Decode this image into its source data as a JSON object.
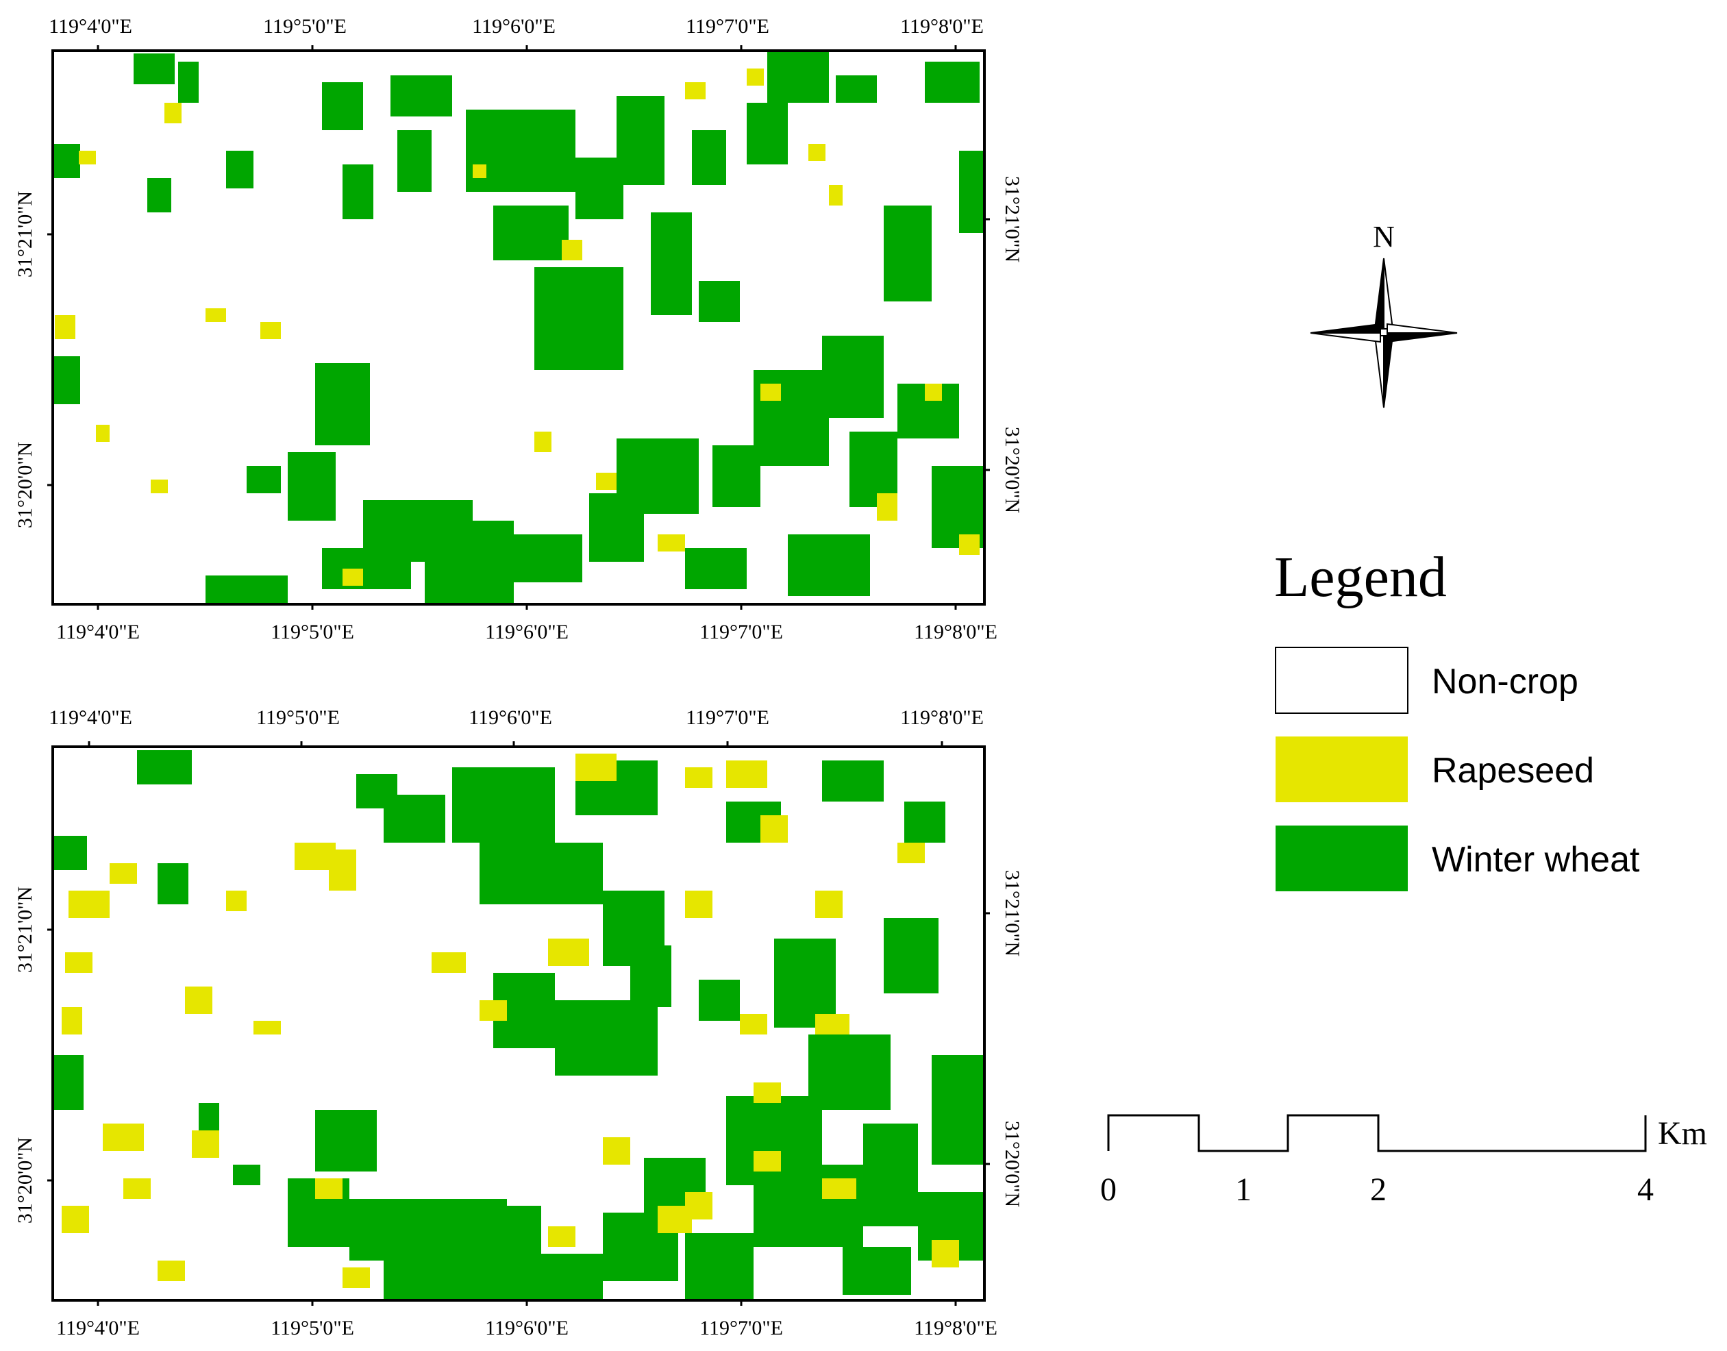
{
  "maps": [
    {
      "id": "top",
      "top_ticks": [
        "119°4'0\"E",
        "119°5'0\"E",
        "119°6'0\"E",
        "119°7'0\"E",
        "119°8'0\"E"
      ],
      "bottom_ticks": [
        "119°4'0\"E",
        "119°5'0\"E",
        "119°6'0\"E",
        "119°7'0\"E",
        "119°8'0\"E"
      ],
      "left_ticks": [
        "31°21'0\"N",
        "31°20'0\"N"
      ],
      "right_ticks": [
        "31°21'0\"N",
        "31°20'0\"N"
      ]
    },
    {
      "id": "bottom",
      "top_ticks": [
        "119°4'0\"E",
        "119°5'0\"E",
        "119°6'0\"E",
        "119°7'0\"E",
        "119°8'0\"E"
      ],
      "bottom_ticks": [
        "119°4'0\"E",
        "119°5'0\"E",
        "119°6'0\"E",
        "119°7'0\"E",
        "119°8'0\"E"
      ],
      "left_ticks": [
        "31°21'0\"N",
        "31°20'0\"N"
      ],
      "right_ticks": [
        "31°21'0\"N",
        "31°20'0\"N"
      ]
    }
  ],
  "north_arrow": {
    "label": "N"
  },
  "legend": {
    "title": "Legend",
    "items": [
      {
        "label": "Non-crop",
        "color": "#ffffff"
      },
      {
        "label": "Rapeseed",
        "color": "#e6e600"
      },
      {
        "label": "Winter wheat",
        "color": "#00a600"
      }
    ]
  },
  "scale_bar": {
    "unit": "Km",
    "labels": [
      "0",
      "1",
      "2",
      "4"
    ]
  }
}
